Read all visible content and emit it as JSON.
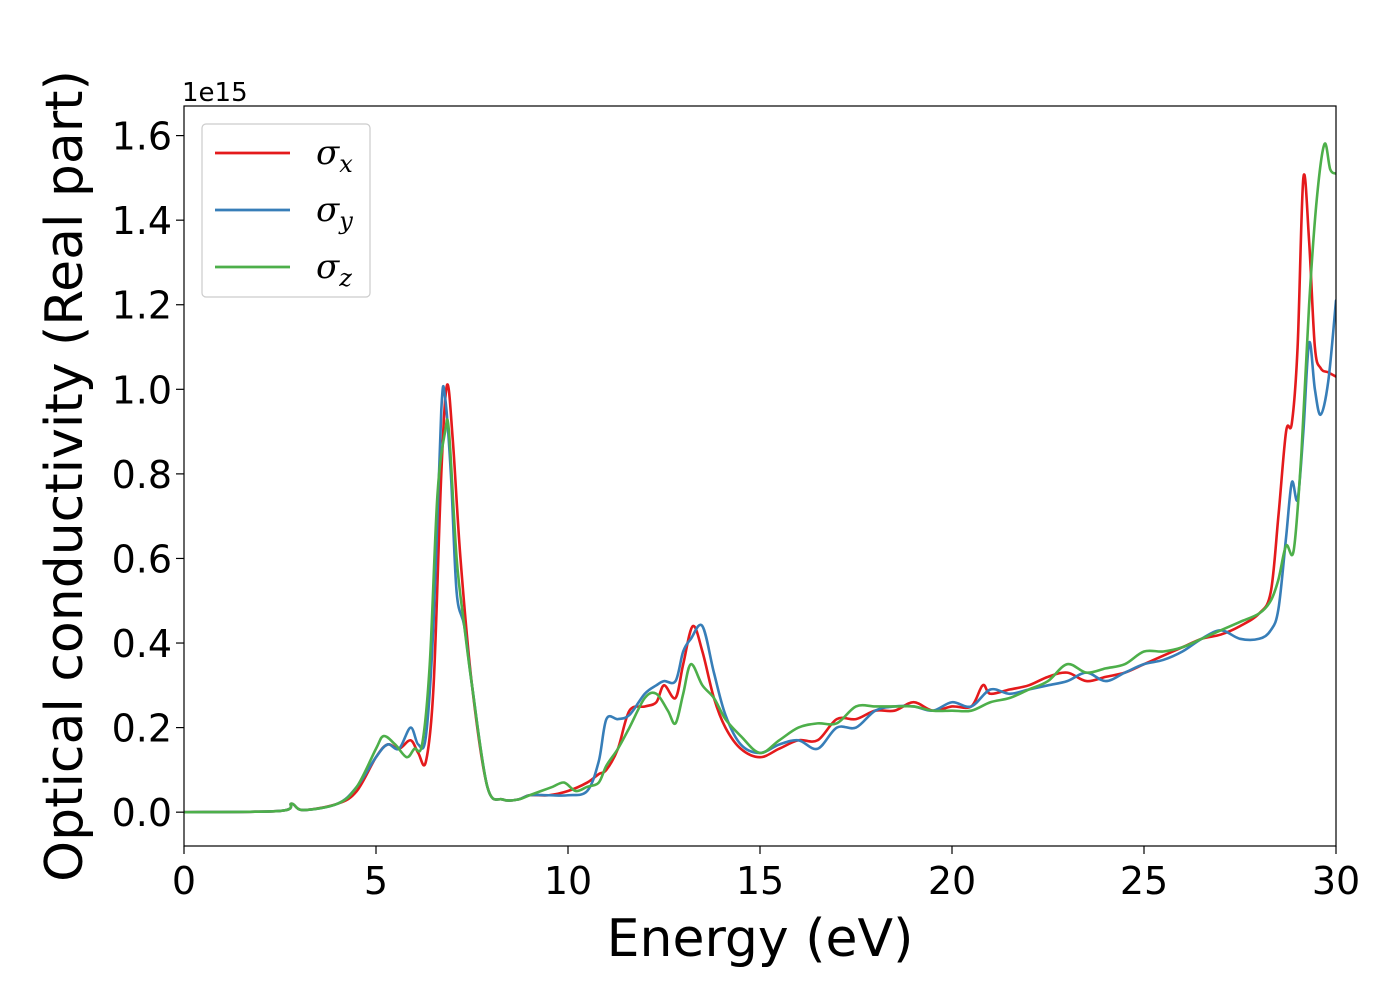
{
  "chart_data": {
    "type": "line",
    "xlabel": "Energy (eV)",
    "ylabel": "Optical conductivity (Real part)",
    "y_offset_label": "1e15",
    "xlim": [
      0,
      30
    ],
    "ylim": [
      -0.08,
      1.67
    ],
    "xticks": [
      0,
      5,
      10,
      15,
      20,
      25,
      30
    ],
    "xtick_labels": [
      "0",
      "5",
      "10",
      "15",
      "20",
      "25",
      "30"
    ],
    "yticks": [
      0.0,
      0.2,
      0.4,
      0.6,
      0.8,
      1.0,
      1.2,
      1.4,
      1.6
    ],
    "ytick_labels": [
      "0.0",
      "0.2",
      "0.4",
      "0.6",
      "0.8",
      "1.0",
      "1.2",
      "1.4",
      "1.6"
    ],
    "grid": false,
    "legend_position": "top-left",
    "series": [
      {
        "name": "σx",
        "name_base": "σ",
        "name_sub": "x",
        "color": "#e41a1c",
        "x": [
          0,
          2.5,
          2.8,
          3.1,
          4.0,
          4.5,
          5.0,
          5.3,
          5.6,
          5.9,
          6.1,
          6.3,
          6.5,
          6.7,
          6.85,
          7.0,
          7.2,
          7.5,
          7.9,
          8.3,
          8.7,
          9.0,
          9.5,
          10.0,
          10.5,
          10.8,
          11.0,
          11.3,
          11.6,
          12.0,
          12.3,
          12.5,
          12.8,
          13.0,
          13.25,
          13.5,
          13.8,
          14.1,
          14.5,
          15.0,
          15.5,
          16.0,
          16.5,
          17.0,
          17.5,
          18.0,
          18.5,
          19.0,
          19.5,
          20.0,
          20.5,
          20.8,
          21.0,
          21.5,
          22.0,
          22.5,
          23.0,
          23.5,
          24.0,
          24.5,
          25.0,
          25.5,
          26.0,
          26.5,
          27.0,
          27.5,
          28.0,
          28.3,
          28.5,
          28.7,
          28.85,
          29.0,
          29.15,
          29.3,
          29.45,
          29.6,
          29.8,
          30.0
        ],
        "y": [
          0.0,
          0.003,
          0.02,
          0.005,
          0.02,
          0.05,
          0.13,
          0.16,
          0.15,
          0.17,
          0.14,
          0.12,
          0.3,
          0.8,
          1.01,
          0.88,
          0.6,
          0.3,
          0.06,
          0.03,
          0.03,
          0.04,
          0.04,
          0.05,
          0.07,
          0.09,
          0.1,
          0.15,
          0.24,
          0.25,
          0.26,
          0.3,
          0.27,
          0.35,
          0.44,
          0.38,
          0.27,
          0.2,
          0.15,
          0.13,
          0.15,
          0.17,
          0.17,
          0.22,
          0.22,
          0.24,
          0.24,
          0.26,
          0.24,
          0.25,
          0.25,
          0.3,
          0.28,
          0.29,
          0.3,
          0.32,
          0.33,
          0.31,
          0.32,
          0.33,
          0.35,
          0.37,
          0.39,
          0.41,
          0.42,
          0.44,
          0.47,
          0.52,
          0.7,
          0.9,
          0.92,
          1.1,
          1.5,
          1.35,
          1.1,
          1.05,
          1.04,
          1.03
        ]
      },
      {
        "name": "σy",
        "name_base": "σ",
        "name_sub": "y",
        "color": "#377eb8",
        "x": [
          0,
          2.5,
          2.8,
          3.1,
          4.0,
          4.5,
          5.0,
          5.3,
          5.6,
          5.9,
          6.1,
          6.3,
          6.5,
          6.7,
          6.8,
          6.95,
          7.1,
          7.3,
          7.5,
          7.9,
          8.3,
          8.7,
          9.0,
          9.5,
          10.0,
          10.5,
          10.8,
          11.0,
          11.3,
          11.6,
          12.0,
          12.3,
          12.5,
          12.8,
          13.0,
          13.2,
          13.5,
          13.8,
          14.1,
          14.5,
          15.0,
          15.5,
          16.0,
          16.5,
          17.0,
          17.5,
          18.0,
          18.5,
          19.0,
          19.5,
          20.0,
          20.5,
          21.0,
          21.5,
          22.0,
          22.5,
          23.0,
          23.5,
          24.0,
          24.5,
          25.0,
          25.5,
          26.0,
          26.5,
          27.0,
          27.5,
          28.0,
          28.3,
          28.5,
          28.7,
          28.85,
          29.0,
          29.15,
          29.3,
          29.45,
          29.6,
          29.8,
          30.0
        ],
        "y": [
          0.0,
          0.003,
          0.02,
          0.005,
          0.02,
          0.06,
          0.13,
          0.16,
          0.15,
          0.2,
          0.16,
          0.18,
          0.45,
          0.95,
          0.98,
          0.8,
          0.52,
          0.44,
          0.3,
          0.06,
          0.03,
          0.03,
          0.04,
          0.04,
          0.04,
          0.05,
          0.12,
          0.22,
          0.22,
          0.23,
          0.28,
          0.3,
          0.31,
          0.31,
          0.38,
          0.41,
          0.44,
          0.33,
          0.23,
          0.16,
          0.14,
          0.16,
          0.17,
          0.15,
          0.2,
          0.2,
          0.24,
          0.25,
          0.25,
          0.24,
          0.26,
          0.25,
          0.29,
          0.28,
          0.29,
          0.3,
          0.31,
          0.33,
          0.31,
          0.33,
          0.35,
          0.36,
          0.38,
          0.41,
          0.43,
          0.41,
          0.41,
          0.43,
          0.48,
          0.65,
          0.78,
          0.74,
          0.9,
          1.11,
          1.0,
          0.94,
          1.02,
          1.21
        ]
      },
      {
        "name": "σz",
        "name_base": "σ",
        "name_sub": "z",
        "color": "#4daf4a",
        "x": [
          0,
          2.5,
          2.8,
          3.1,
          4.0,
          4.5,
          5.0,
          5.2,
          5.5,
          5.8,
          6.0,
          6.2,
          6.4,
          6.6,
          6.8,
          6.9,
          7.1,
          7.3,
          7.5,
          7.9,
          8.3,
          8.7,
          9.0,
          9.3,
          9.6,
          9.9,
          10.2,
          10.5,
          10.8,
          11.0,
          11.3,
          11.6,
          12.0,
          12.3,
          12.6,
          12.8,
          13.0,
          13.2,
          13.5,
          13.8,
          14.1,
          14.5,
          15.0,
          15.5,
          16.0,
          16.5,
          17.0,
          17.5,
          18.0,
          18.5,
          19.0,
          19.5,
          20.0,
          20.5,
          21.0,
          21.5,
          22.0,
          22.5,
          23.0,
          23.5,
          24.0,
          24.5,
          25.0,
          25.5,
          26.0,
          26.5,
          27.0,
          27.5,
          28.0,
          28.3,
          28.5,
          28.7,
          28.9,
          29.1,
          29.3,
          29.5,
          29.7,
          29.85,
          30.0
        ],
        "y": [
          0.0,
          0.003,
          0.02,
          0.005,
          0.02,
          0.06,
          0.15,
          0.18,
          0.16,
          0.13,
          0.15,
          0.16,
          0.35,
          0.75,
          0.9,
          0.9,
          0.6,
          0.44,
          0.3,
          0.06,
          0.03,
          0.03,
          0.04,
          0.05,
          0.06,
          0.07,
          0.05,
          0.06,
          0.07,
          0.11,
          0.15,
          0.2,
          0.27,
          0.28,
          0.24,
          0.21,
          0.28,
          0.35,
          0.3,
          0.27,
          0.22,
          0.18,
          0.14,
          0.17,
          0.2,
          0.21,
          0.21,
          0.25,
          0.25,
          0.25,
          0.25,
          0.24,
          0.24,
          0.24,
          0.26,
          0.27,
          0.29,
          0.31,
          0.35,
          0.33,
          0.34,
          0.35,
          0.38,
          0.38,
          0.39,
          0.41,
          0.43,
          0.45,
          0.47,
          0.5,
          0.55,
          0.63,
          0.62,
          0.85,
          1.2,
          1.45,
          1.58,
          1.52,
          1.51
        ]
      }
    ]
  }
}
